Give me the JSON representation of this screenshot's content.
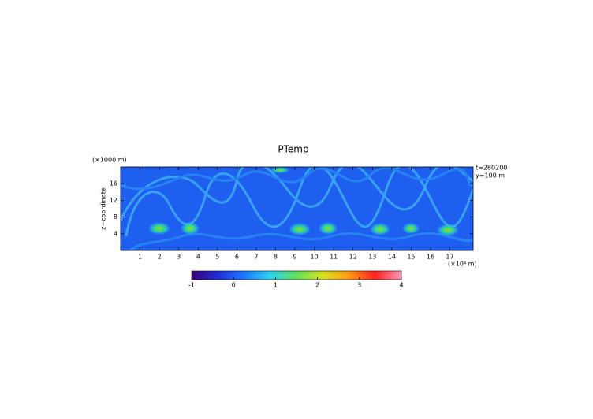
{
  "chart_data": {
    "type": "heatmap",
    "title": "PTemp",
    "xlabel": "(×10⁴ m)",
    "ylabel": "z−coordinate",
    "yunit": "(×1000 m)",
    "annotations": [
      "t=280200",
      "y=100 m"
    ],
    "xlim": [
      0,
      18.2
    ],
    "xticks": [
      1,
      2,
      3,
      4,
      5,
      6,
      7,
      8,
      9,
      10,
      11,
      12,
      13,
      14,
      15,
      16,
      17
    ],
    "ylim": [
      0,
      20
    ],
    "yticks": [
      4,
      8,
      12,
      16
    ],
    "colorbar": {
      "lim": [
        -1,
        4
      ],
      "ticks": [
        -1,
        0,
        1,
        2,
        3,
        4
      ],
      "colors": [
        "#3a0078",
        "#1f2fd8",
        "#1e78ff",
        "#2cd2f0",
        "#5ee05a",
        "#d8e020",
        "#ff9a10",
        "#ff2020",
        "#ff9ab8"
      ]
    }
  }
}
